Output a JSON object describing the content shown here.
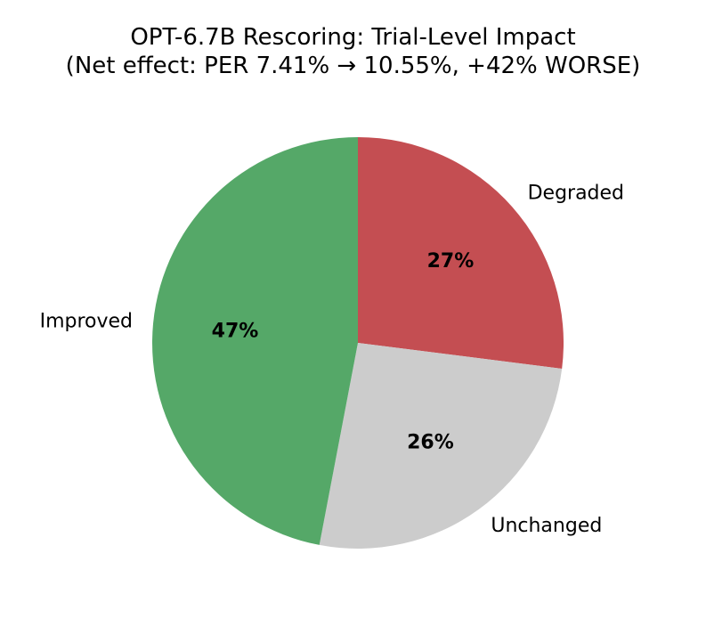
{
  "chart_data": {
    "type": "pie",
    "title": "OPT-6.7B Rescoring: Trial-Level Impact",
    "subtitle": "(Net effect: PER 7.41% → 10.55%, +42% WORSE)",
    "start_angle_deg": 90,
    "direction": "clockwise",
    "slices": [
      {
        "label": "Degraded",
        "value": 27,
        "pct_label": "27%",
        "color": "#c44e52"
      },
      {
        "label": "Unchanged",
        "value": 26,
        "pct_label": "26%",
        "color": "#cccccc"
      },
      {
        "label": "Improved",
        "value": 47,
        "pct_label": "47%",
        "color": "#55a868"
      }
    ]
  }
}
